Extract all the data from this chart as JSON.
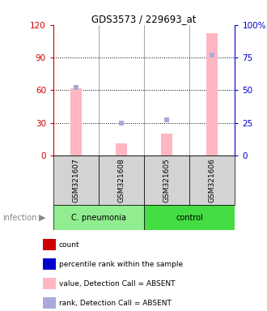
{
  "title": "GDS3573 / 229693_at",
  "samples": [
    "GSM321607",
    "GSM321608",
    "GSM321605",
    "GSM321606"
  ],
  "bar_values_absent": [
    62,
    11,
    20,
    112
  ],
  "rank_absent": [
    52,
    25,
    27,
    77
  ],
  "ylim_left": [
    0,
    120
  ],
  "ylim_right": [
    0,
    100
  ],
  "yticks_left": [
    0,
    30,
    60,
    90,
    120
  ],
  "yticks_right": [
    0,
    25,
    50,
    75,
    100
  ],
  "ytick_labels_right": [
    "0",
    "25",
    "50",
    "75",
    "100%"
  ],
  "left_axis_color": "#CC0000",
  "right_axis_color": "#0000CC",
  "bar_color_absent": "#FFB6C1",
  "rank_color_absent": "#AAAADD",
  "legend_items": [
    {
      "color": "#CC0000",
      "label": "count"
    },
    {
      "color": "#0000CC",
      "label": "percentile rank within the sample"
    },
    {
      "color": "#FFB6C1",
      "label": "value, Detection Call = ABSENT"
    },
    {
      "color": "#AAAADD",
      "label": "rank, Detection Call = ABSENT"
    }
  ],
  "group_label": "infection",
  "group_names": [
    "C. pneumonia",
    "control"
  ],
  "group_colors": [
    "#90EE90",
    "#44DD44"
  ],
  "sample_box_color": "#D3D3D3",
  "bar_width": 0.25,
  "figsize": [
    3.3,
    3.84
  ],
  "dpi": 100
}
